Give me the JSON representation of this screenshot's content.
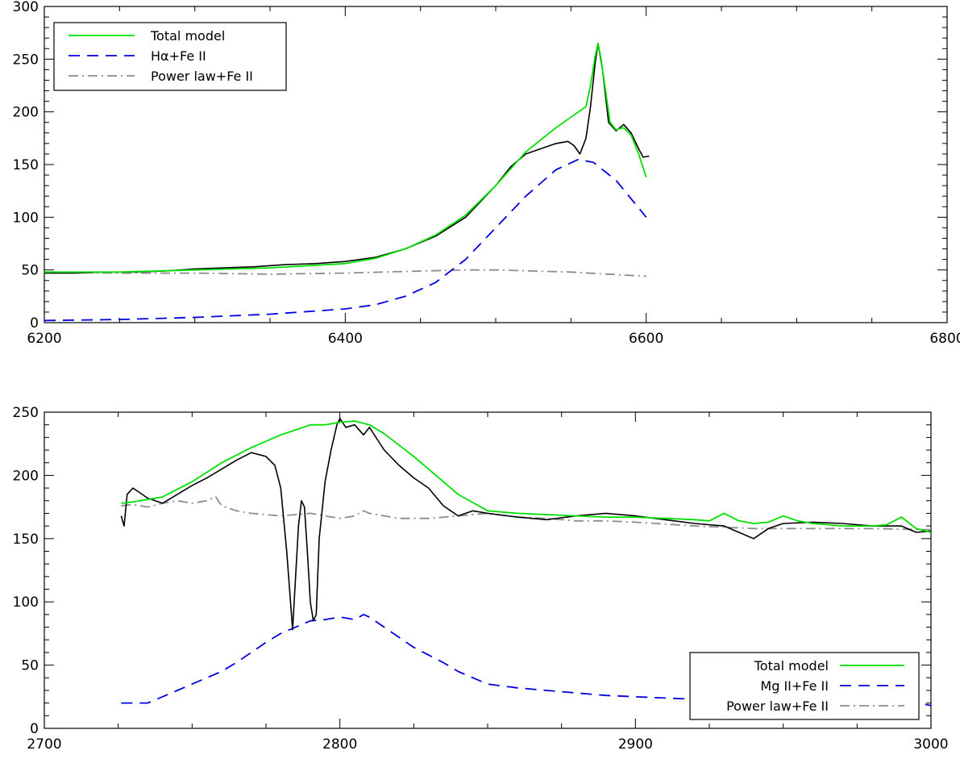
{
  "chart_data": [
    {
      "type": "line",
      "title": "",
      "xlabel": "",
      "ylabel": "",
      "xlim": [
        6200,
        6800
      ],
      "ylim": [
        0,
        300
      ],
      "x_ticks": [
        "6200",
        "6400",
        "6600",
        "6800"
      ],
      "y_ticks": [
        "0",
        "50",
        "100",
        "150",
        "200",
        "250",
        "300"
      ],
      "legend_position": "top-left",
      "legend": [
        {
          "label": "Total model",
          "color": "#00e000",
          "style": "solid"
        },
        {
          "label": "Hα+Fe II",
          "color": "#0000e0",
          "style": "dashed"
        },
        {
          "label": "Power law+Fe II",
          "color": "#8c8c8c",
          "style": "dash-dot"
        }
      ],
      "series": [
        {
          "role": "data",
          "color": "#000000",
          "style": "solid",
          "x": [
            6200,
            6220,
            6240,
            6260,
            6280,
            6300,
            6320,
            6340,
            6360,
            6380,
            6400,
            6420,
            6440,
            6460,
            6480,
            6500,
            6510,
            6520,
            6530,
            6540,
            6548,
            6552,
            6556,
            6560,
            6563,
            6566,
            6568,
            6571,
            6575,
            6580,
            6585,
            6590,
            6595,
            6598,
            6602
          ],
          "y": [
            47,
            47,
            48,
            48,
            49,
            51,
            52,
            53,
            55,
            56,
            58,
            62,
            70,
            82,
            100,
            130,
            148,
            160,
            165,
            170,
            172,
            168,
            160,
            175,
            205,
            245,
            265,
            240,
            190,
            182,
            188,
            180,
            165,
            157,
            158
          ]
        },
        {
          "name": "Total model",
          "color": "#00e000",
          "style": "solid",
          "x": [
            6200,
            6250,
            6300,
            6350,
            6400,
            6420,
            6440,
            6460,
            6480,
            6500,
            6520,
            6540,
            6555,
            6560,
            6563,
            6566,
            6568,
            6570,
            6573,
            6576,
            6580,
            6585,
            6590,
            6595,
            6600
          ],
          "y": [
            48,
            48,
            50,
            52,
            56,
            61,
            70,
            83,
            102,
            130,
            162,
            185,
            200,
            205,
            225,
            252,
            265,
            250,
            220,
            190,
            183,
            185,
            178,
            160,
            138
          ]
        },
        {
          "name": "Hα+Fe II",
          "color": "#0000e0",
          "style": "dashed",
          "x": [
            6200,
            6250,
            6300,
            6350,
            6400,
            6420,
            6440,
            6460,
            6480,
            6500,
            6520,
            6540,
            6555,
            6565,
            6580,
            6600
          ],
          "y": [
            2,
            3,
            5,
            8,
            13,
            17,
            25,
            38,
            60,
            90,
            120,
            145,
            155,
            152,
            135,
            100
          ]
        },
        {
          "name": "Power law+Fe II",
          "color": "#8c8c8c",
          "style": "dash-dot",
          "x": [
            6200,
            6250,
            6300,
            6350,
            6400,
            6450,
            6480,
            6500,
            6550,
            6600
          ],
          "y": [
            48,
            47,
            47,
            46,
            47,
            49,
            50,
            50,
            48,
            44
          ]
        }
      ]
    },
    {
      "type": "line",
      "title": "",
      "xlabel": "",
      "ylabel": "",
      "xlim": [
        2700,
        3000
      ],
      "ylim": [
        0,
        250
      ],
      "x_ticks": [
        "2700",
        "2800",
        "2900",
        "3000"
      ],
      "y_ticks": [
        "0",
        "50",
        "100",
        "150",
        "200",
        "250"
      ],
      "legend_position": "bottom-right",
      "legend": [
        {
          "label": "Total model",
          "color": "#00e000",
          "style": "solid"
        },
        {
          "label": "Mg II+Fe II",
          "color": "#0000e0",
          "style": "dashed"
        },
        {
          "label": "Power law+Fe II",
          "color": "#8c8c8c",
          "style": "dash-dot"
        }
      ],
      "series": [
        {
          "role": "data",
          "color": "#000000",
          "style": "solid",
          "x": [
            2726,
            2727,
            2728,
            2730,
            2735,
            2740,
            2745,
            2750,
            2755,
            2760,
            2765,
            2770,
            2775,
            2778,
            2780,
            2782,
            2784,
            2786,
            2787,
            2788,
            2789,
            2790,
            2791,
            2792,
            2793,
            2795,
            2797,
            2799,
            2800,
            2802,
            2805,
            2808,
            2810,
            2815,
            2820,
            2825,
            2830,
            2835,
            2840,
            2845,
            2850,
            2860,
            2870,
            2880,
            2890,
            2900,
            2910,
            2920,
            2930,
            2935,
            2940,
            2945,
            2950,
            2960,
            2970,
            2980,
            2990,
            2995,
            3000
          ],
          "y": [
            168,
            160,
            185,
            190,
            182,
            178,
            185,
            192,
            198,
            205,
            212,
            218,
            215,
            208,
            190,
            140,
            78,
            160,
            180,
            175,
            140,
            100,
            85,
            90,
            150,
            195,
            220,
            240,
            245,
            238,
            240,
            232,
            238,
            220,
            208,
            198,
            190,
            176,
            168,
            172,
            170,
            167,
            165,
            168,
            170,
            168,
            165,
            162,
            160,
            155,
            150,
            158,
            162,
            163,
            162,
            160,
            160,
            155,
            156
          ]
        },
        {
          "name": "Total model",
          "color": "#00e000",
          "style": "solid",
          "x": [
            2726,
            2730,
            2740,
            2750,
            2760,
            2770,
            2780,
            2785,
            2790,
            2795,
            2800,
            2805,
            2810,
            2815,
            2820,
            2825,
            2830,
            2835,
            2840,
            2850,
            2860,
            2870,
            2880,
            2890,
            2900,
            2910,
            2920,
            2925,
            2930,
            2935,
            2940,
            2945,
            2950,
            2955,
            2960,
            2970,
            2980,
            2985,
            2990,
            2995,
            3000
          ],
          "y": [
            178,
            179,
            183,
            195,
            210,
            222,
            232,
            236,
            240,
            240,
            242,
            243,
            240,
            233,
            224,
            215,
            205,
            195,
            185,
            172,
            170,
            169,
            168,
            167,
            167,
            166,
            165,
            164,
            170,
            164,
            162,
            163,
            168,
            164,
            162,
            160,
            160,
            161,
            167,
            158,
            155
          ]
        },
        {
          "name": "Mg II+Fe II",
          "color": "#0000e0",
          "style": "dashed",
          "x": [
            2726,
            2735,
            2740,
            2745,
            2750,
            2755,
            2760,
            2765,
            2770,
            2775,
            2780,
            2785,
            2790,
            2795,
            2800,
            2805,
            2808,
            2810,
            2815,
            2820,
            2825,
            2830,
            2835,
            2840,
            2845,
            2850,
            2860,
            2870,
            2880,
            2890,
            2900,
            2910,
            2920,
            2930,
            2940,
            2950,
            2960,
            2970,
            2980,
            2985,
            2990,
            2993,
            2996,
            3000
          ],
          "y": [
            20,
            20,
            25,
            30,
            35,
            40,
            45,
            52,
            60,
            68,
            75,
            80,
            85,
            86,
            88,
            86,
            90,
            88,
            80,
            72,
            64,
            58,
            52,
            45,
            40,
            35,
            32,
            30,
            28,
            26,
            25,
            24,
            23,
            22,
            21,
            20,
            22,
            24,
            20,
            20,
            25,
            28,
            20,
            18
          ]
        },
        {
          "name": "Power law+Fe II",
          "color": "#8c8c8c",
          "style": "dash-dot",
          "x": [
            2726,
            2730,
            2735,
            2740,
            2745,
            2750,
            2755,
            2758,
            2760,
            2765,
            2770,
            2780,
            2790,
            2795,
            2800,
            2805,
            2808,
            2810,
            2815,
            2820,
            2830,
            2840,
            2850,
            2860,
            2870,
            2880,
            2890,
            2900,
            2920,
            2940,
            2960,
            2980,
            3000
          ],
          "y": [
            176,
            177,
            175,
            178,
            180,
            178,
            180,
            183,
            176,
            172,
            170,
            168,
            170,
            168,
            166,
            168,
            172,
            170,
            168,
            166,
            166,
            168,
            170,
            167,
            166,
            164,
            164,
            163,
            160,
            158,
            158,
            158,
            157
          ]
        }
      ]
    }
  ]
}
